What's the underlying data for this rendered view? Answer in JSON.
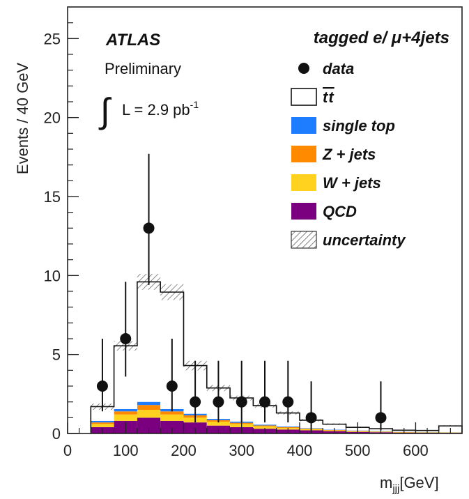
{
  "chart_data": {
    "type": "bar",
    "title": "",
    "xlabel": "m",
    "xlabel_sub": "jjj",
    "xlabel_unit": "[GeV]",
    "ylabel": "Events / 40 GeV",
    "xlim": [
      0,
      680
    ],
    "ylim": [
      0,
      27
    ],
    "x_ticks": [
      0,
      100,
      200,
      300,
      400,
      500,
      600
    ],
    "y_ticks": [
      0,
      5,
      10,
      15,
      20,
      25
    ],
    "grid": false,
    "legend_placement": "top-right",
    "annotations": {
      "experiment": "ATLAS",
      "status": "Preliminary",
      "lumi_integral": "∫",
      "lumi_text": "L = 2.9 pb",
      "lumi_sup": "-1",
      "channel": "tagged e/ μ+4jets"
    },
    "bin_edges": [
      40,
      80,
      120,
      160,
      200,
      240,
      280,
      320,
      360,
      400,
      440,
      480,
      520,
      560,
      600,
      640,
      680
    ],
    "stack_order": [
      "QCD",
      "W + jets",
      "Z + jets",
      "single top",
      "tt"
    ],
    "series": [
      {
        "name": "QCD",
        "color": "#7b0080",
        "values": [
          0.4,
          0.8,
          1.0,
          0.8,
          0.7,
          0.5,
          0.4,
          0.3,
          0.25,
          0.2,
          0.15,
          0.1,
          0.08,
          0.06,
          0.05,
          0.04
        ]
      },
      {
        "name": "W + jets",
        "color": "#ffd21f",
        "values": [
          0.2,
          0.4,
          0.5,
          0.4,
          0.3,
          0.25,
          0.2,
          0.15,
          0.1,
          0.08,
          0.05,
          0.05,
          0.04,
          0.03,
          0.02,
          0.02
        ]
      },
      {
        "name": "Z + jets",
        "color": "#ff8a00",
        "values": [
          0.1,
          0.2,
          0.3,
          0.2,
          0.15,
          0.1,
          0.08,
          0.06,
          0.05,
          0.03,
          0.02,
          0.02,
          0.01,
          0.01,
          0.01,
          0.01
        ]
      },
      {
        "name": "single top",
        "color": "#1e7dff",
        "values": [
          0.1,
          0.15,
          0.2,
          0.15,
          0.1,
          0.08,
          0.07,
          0.05,
          0.04,
          0.03,
          0.02,
          0.02,
          0.02,
          0.01,
          0.01,
          0.01
        ]
      },
      {
        "name": "tt",
        "color": "#ffffff",
        "values": [
          0.9,
          4.0,
          7.6,
          7.4,
          3.05,
          1.95,
          1.5,
          1.2,
          0.86,
          0.5,
          0.35,
          0.2,
          0.15,
          0.1,
          0.1,
          0.4
        ]
      }
    ],
    "uncertainty": {
      "name": "uncertainty",
      "half_width": [
        0.2,
        0.3,
        0.5,
        0.5,
        0.3,
        0.2,
        0.15,
        0.12,
        0.1,
        0.07,
        0.05,
        0.04,
        0.03,
        0.02,
        0.02,
        0.04
      ]
    },
    "data_points": {
      "name": "data",
      "x": [
        60,
        100,
        140,
        180,
        220,
        260,
        300,
        340,
        380,
        420,
        540
      ],
      "y": [
        3,
        6,
        13,
        3,
        2,
        2,
        2,
        2,
        2,
        1,
        1
      ],
      "err_low": [
        1.6,
        2.4,
        3.6,
        1.6,
        1.3,
        1.3,
        1.3,
        1.3,
        1.3,
        0.8,
        0.8
      ],
      "err_high": [
        3.0,
        3.6,
        4.7,
        3.0,
        2.6,
        2.6,
        2.6,
        2.6,
        2.6,
        2.3,
        2.3
      ]
    },
    "legend": [
      {
        "label": "data",
        "kind": "marker"
      },
      {
        "label": "tt",
        "kind": "box",
        "color": "#ffffff",
        "ttbar": true
      },
      {
        "label": "single top",
        "kind": "box",
        "color": "#1e7dff"
      },
      {
        "label": "Z + jets",
        "kind": "box",
        "color": "#ff8a00"
      },
      {
        "label": "W + jets",
        "kind": "box",
        "color": "#ffd21f"
      },
      {
        "label": "QCD",
        "kind": "box",
        "color": "#7b0080"
      },
      {
        "label": "uncertainty",
        "kind": "hatch"
      }
    ]
  }
}
